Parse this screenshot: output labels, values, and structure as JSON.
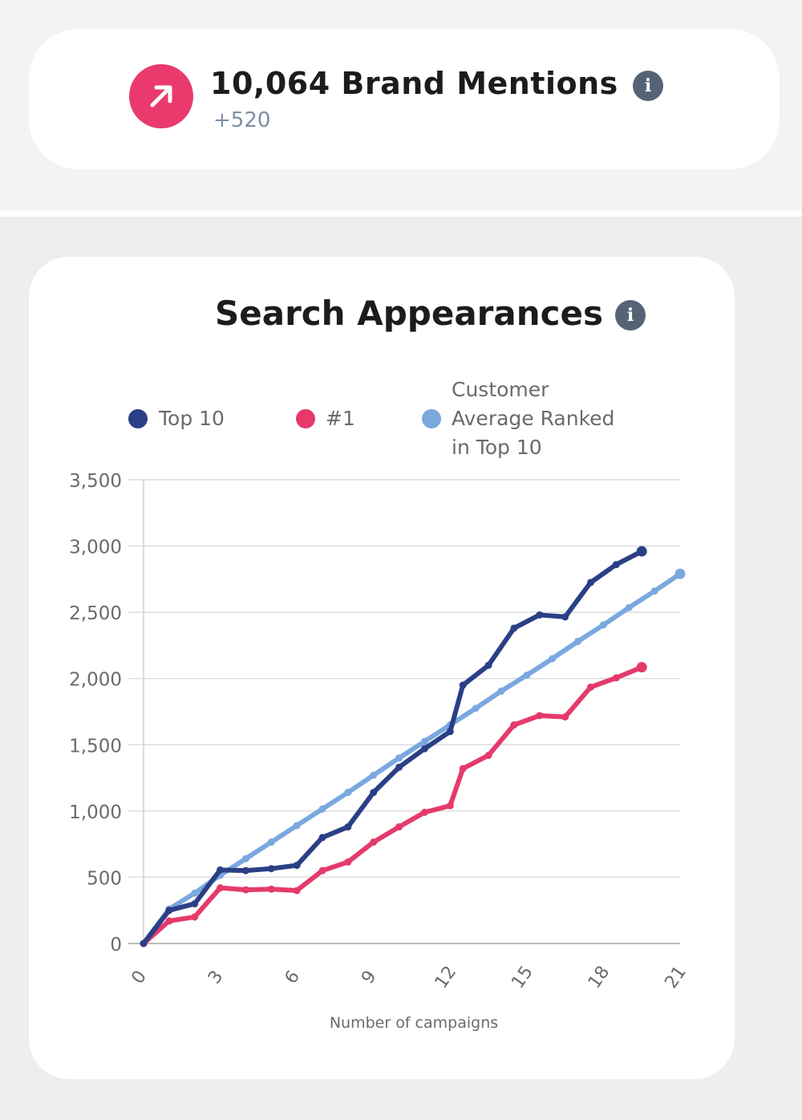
{
  "mentions_card": {
    "value_title": "10,064 Brand Mentions",
    "delta": "+520",
    "trend_icon": "arrow-up-right-icon",
    "info_icon": "info-icon",
    "badge_color": "#ea3a6d"
  },
  "chart_card": {
    "title": "Search Appearances",
    "info_icon": "info-icon",
    "x_axis_title": "Number of campaigns"
  },
  "chart_data": {
    "type": "line",
    "title": "Search Appearances",
    "xlabel": "Number of campaigns",
    "ylabel": "",
    "xlim": [
      0,
      21
    ],
    "ylim": [
      0,
      3500
    ],
    "x_ticks": [
      0,
      3,
      6,
      9,
      12,
      15,
      18,
      21
    ],
    "x_tick_labels": [
      "0",
      "3",
      "6",
      "9",
      "12",
      "15",
      "18",
      "21"
    ],
    "y_ticks": [
      0,
      500,
      1000,
      1500,
      2000,
      2500,
      3000,
      3500
    ],
    "y_tick_labels": [
      "0",
      "500",
      "1,000",
      "1,500",
      "2,000",
      "2,500",
      "3,000",
      "3,500"
    ],
    "grid": true,
    "legend_position": "top",
    "series": [
      {
        "name": "Top 10",
        "color": "#2b3f86",
        "points": [
          [
            0,
            0
          ],
          [
            1,
            250
          ],
          [
            2,
            300
          ],
          [
            3,
            555
          ],
          [
            4,
            550
          ],
          [
            5,
            565
          ],
          [
            6,
            590
          ],
          [
            7,
            800
          ],
          [
            8,
            880
          ],
          [
            9,
            1140
          ],
          [
            10,
            1330
          ],
          [
            11,
            1470
          ],
          [
            12,
            1600
          ],
          [
            12.5,
            1950
          ],
          [
            13.5,
            2100
          ],
          [
            14.5,
            2380
          ],
          [
            15.5,
            2480
          ],
          [
            16.5,
            2465
          ],
          [
            17.5,
            2725
          ],
          [
            18.5,
            2860
          ],
          [
            19.5,
            2960
          ]
        ]
      },
      {
        "name": "#1",
        "color": "#e53a6b",
        "points": [
          [
            0,
            0
          ],
          [
            1,
            170
          ],
          [
            2,
            200
          ],
          [
            3,
            420
          ],
          [
            4,
            405
          ],
          [
            5,
            410
          ],
          [
            6,
            400
          ],
          [
            7,
            550
          ],
          [
            8,
            615
          ],
          [
            9,
            765
          ],
          [
            10,
            880
          ],
          [
            11,
            990
          ],
          [
            12,
            1040
          ],
          [
            12.5,
            1320
          ],
          [
            13.5,
            1420
          ],
          [
            14.5,
            1650
          ],
          [
            15.5,
            1720
          ],
          [
            16.5,
            1710
          ],
          [
            17.5,
            1935
          ],
          [
            18.5,
            2005
          ],
          [
            19.5,
            2085
          ]
        ]
      },
      {
        "name": "Customer Average Ranked in Top 10",
        "color": "#7aa8df",
        "points": [
          [
            0,
            0
          ],
          [
            1,
            260
          ],
          [
            2,
            380
          ],
          [
            3,
            515
          ],
          [
            4,
            640
          ],
          [
            5,
            765
          ],
          [
            6,
            890
          ],
          [
            7,
            1015
          ],
          [
            8,
            1140
          ],
          [
            9,
            1270
          ],
          [
            10,
            1400
          ],
          [
            11,
            1525
          ],
          [
            12,
            1650
          ],
          [
            13,
            1775
          ],
          [
            14,
            1905
          ],
          [
            15,
            2025
          ],
          [
            16,
            2150
          ],
          [
            17,
            2280
          ],
          [
            18,
            2405
          ],
          [
            19,
            2535
          ],
          [
            20,
            2660
          ],
          [
            21,
            2790
          ]
        ]
      }
    ]
  }
}
